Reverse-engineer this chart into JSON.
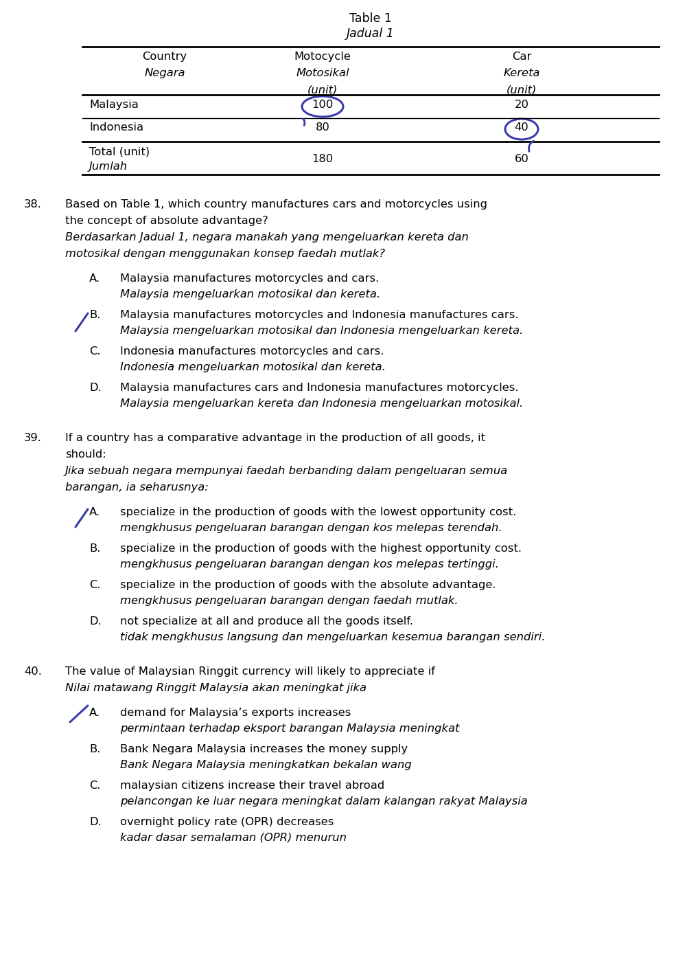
{
  "bg_color": "#ffffff",
  "table_title": "Table 1",
  "table_title_italic": "Jadual 1",
  "font_size": 11.8,
  "q38_options": [
    [
      "A.",
      "Malaysia manufactures motorcycles and cars.",
      "Malaysia mengeluarkan motosikal dan kereta."
    ],
    [
      "B.",
      "Malaysia manufactures motorcycles and Indonesia manufactures cars.",
      "Malaysia mengeluarkan motosikal dan Indonesia mengeluarkan kereta."
    ],
    [
      "C.",
      "Indonesia manufactures motorcycles and cars.",
      "Indonesia mengeluarkan motosikal dan kereta."
    ],
    [
      "D.",
      "Malaysia manufactures cars and Indonesia manufactures motorcycles.",
      "Malaysia mengeluarkan kereta dan Indonesia mengeluarkan motosikal."
    ]
  ],
  "q38_tick": "B",
  "q39_options": [
    [
      "A.",
      "specialize in the production of goods with the lowest opportunity cost.",
      "mengkhusus pengeluaran barangan dengan kos melepas terendah."
    ],
    [
      "B.",
      "specialize in the production of goods with the highest opportunity cost.",
      "mengkhusus pengeluaran barangan dengan kos melepas tertinggi."
    ],
    [
      "C.",
      "specialize in the production of goods with the absolute advantage.",
      "mengkhusus pengeluaran barangan dengan faedah mutlak."
    ],
    [
      "D.",
      "not specialize at all and produce all the goods itself.",
      "tidak mengkhusus langsung dan mengeluarkan kesemua barangan sendiri."
    ]
  ],
  "q39_tick": "A",
  "q40_options": [
    [
      "A.",
      "demand for Malaysia’s exports increases",
      "permintaan terhadap eksport barangan Malaysia meningkat"
    ],
    [
      "B.",
      "Bank Negara Malaysia increases the money supply",
      "Bank Negara Malaysia meningkatkan bekalan wang"
    ],
    [
      "C.",
      "malaysian citizens increase their travel abroad",
      "pelancongan ke luar negara meningkat dalam kalangan rakyat Malaysia"
    ],
    [
      "D.",
      "overnight policy rate (OPR) decreases",
      "kadar dasar semalaman (OPR) menurun"
    ]
  ],
  "q40_tick": "A",
  "mark_color": "#3a3aaa"
}
